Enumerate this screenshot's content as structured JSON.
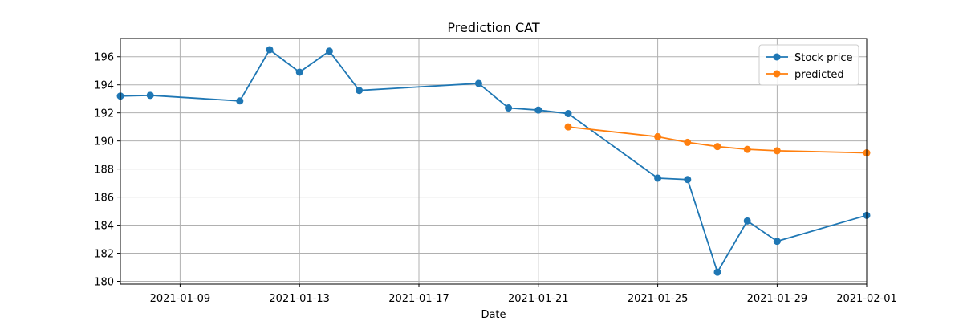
{
  "chart_data": {
    "type": "line",
    "title": "Prediction CAT",
    "xlabel": "Date",
    "ylabel": "",
    "xlim": [
      "2021-01-07",
      "2021-02-01"
    ],
    "ylim": [
      179.8,
      197.3
    ],
    "x_ticks": [
      "2021-01-09",
      "2021-01-13",
      "2021-01-17",
      "2021-01-21",
      "2021-01-25",
      "2021-01-29",
      "2021-02-01"
    ],
    "y_ticks": [
      180,
      182,
      184,
      186,
      188,
      190,
      192,
      194,
      196
    ],
    "grid": true,
    "legend_position": "top-right",
    "series": [
      {
        "name": "Stock price",
        "color": "#1f77b4",
        "marker": "circle",
        "x": [
          "2021-01-07",
          "2021-01-08",
          "2021-01-11",
          "2021-01-12",
          "2021-01-13",
          "2021-01-14",
          "2021-01-15",
          "2021-01-19",
          "2021-01-20",
          "2021-01-21",
          "2021-01-22",
          "2021-01-25",
          "2021-01-26",
          "2021-01-27",
          "2021-01-28",
          "2021-01-29",
          "2021-02-01"
        ],
        "values": [
          193.2,
          193.25,
          192.85,
          196.5,
          194.9,
          196.4,
          193.6,
          194.1,
          192.35,
          192.2,
          191.95,
          187.35,
          187.25,
          180.65,
          184.3,
          182.85,
          184.7
        ]
      },
      {
        "name": "predicted",
        "color": "#ff7f0e",
        "marker": "circle",
        "x": [
          "2021-01-22",
          "2021-01-25",
          "2021-01-26",
          "2021-01-27",
          "2021-01-28",
          "2021-01-29",
          "2021-02-01"
        ],
        "values": [
          191.0,
          190.3,
          189.9,
          189.6,
          189.4,
          189.3,
          189.15
        ]
      }
    ]
  }
}
